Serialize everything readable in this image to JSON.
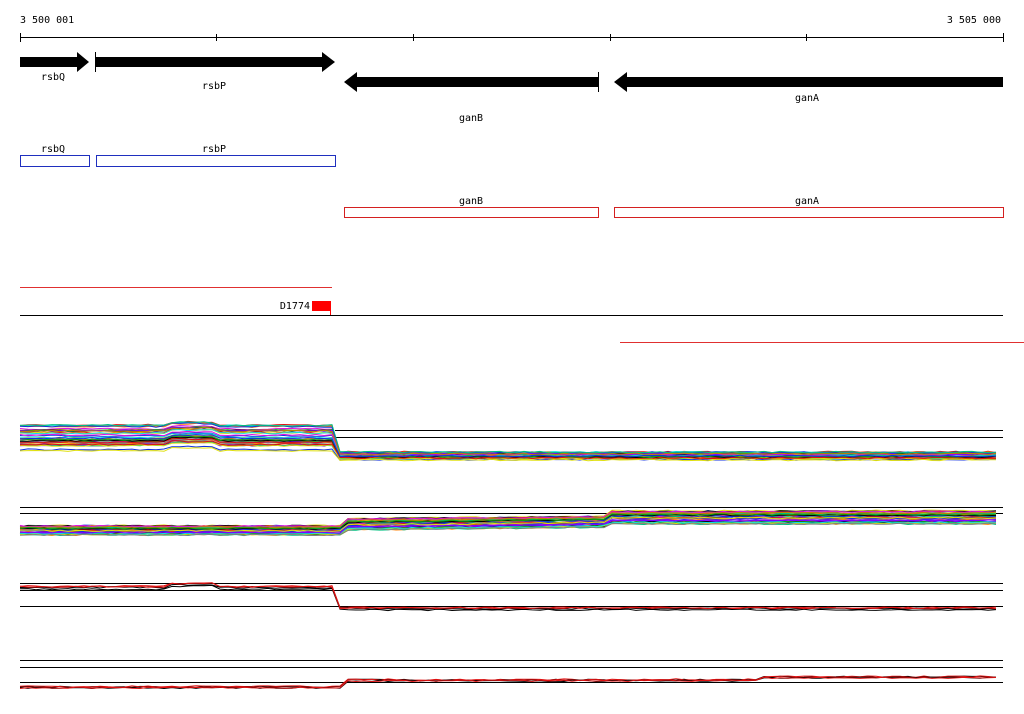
{
  "ruler": {
    "start": "3 500 001",
    "end": "3 505 000"
  },
  "genes": [
    {
      "label": "rsbQ"
    },
    {
      "label": "rsbP"
    },
    {
      "label": "ganB"
    },
    {
      "label": "ganA"
    }
  ],
  "cds": [
    {
      "label": "rsbQ"
    },
    {
      "label": "rsbP"
    },
    {
      "label": "ganB"
    },
    {
      "label": "ganA"
    }
  ],
  "feature": {
    "label": "D1774"
  }
}
